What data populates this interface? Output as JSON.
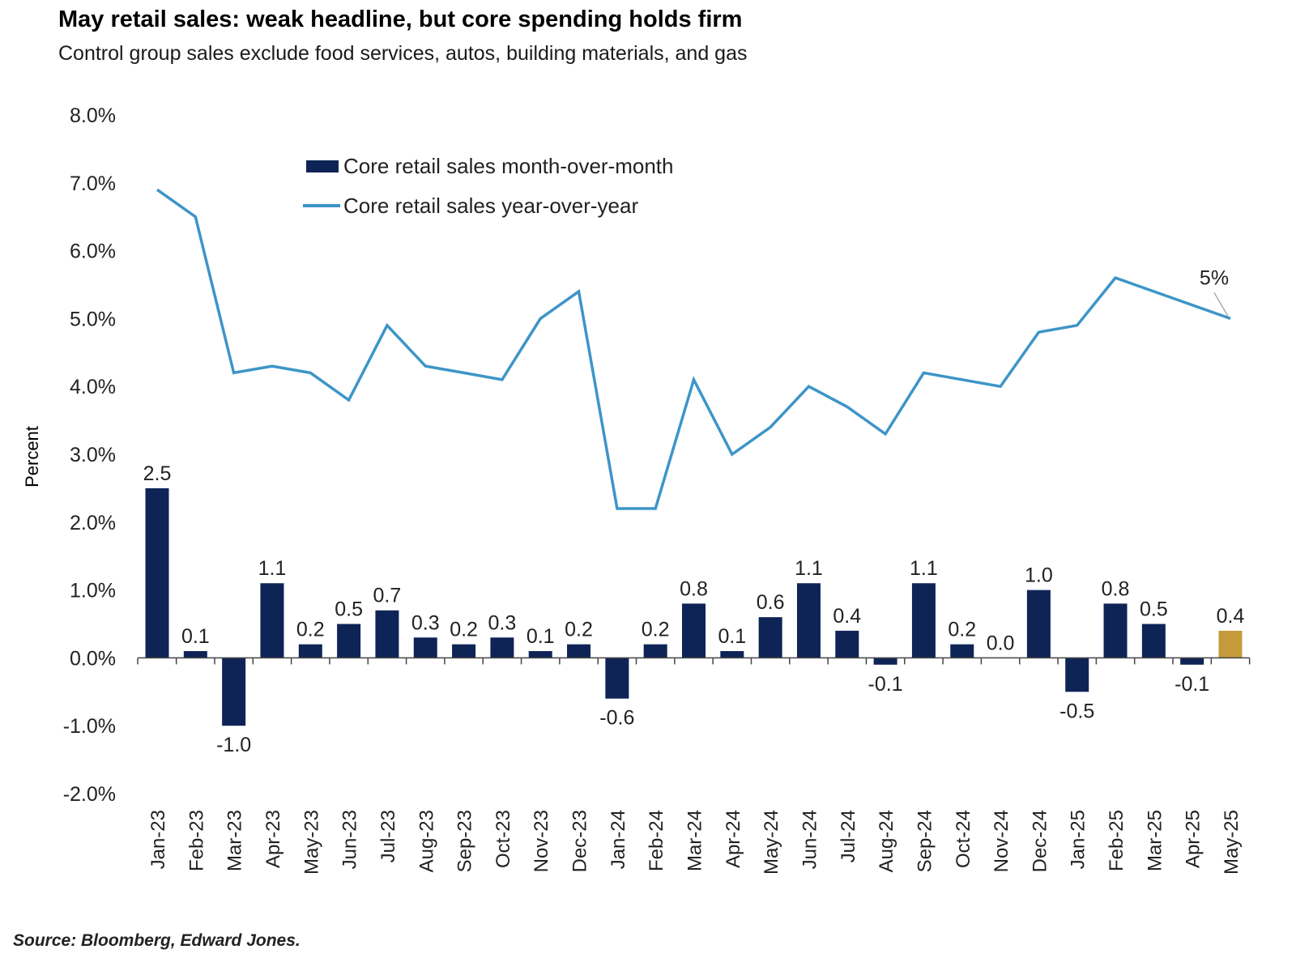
{
  "header": {
    "title": "May retail sales: weak headline, but core spending holds firm",
    "subtitle": "Control group sales exclude food services, autos, building materials, and gas"
  },
  "footer": {
    "source": "Source: Bloomberg, Edward Jones."
  },
  "colors": {
    "bar": "#0f2456",
    "bar_highlight": "#c49a3a",
    "line": "#3d95c8",
    "axis": "#444444"
  },
  "chart_data": {
    "type": "bar",
    "ylabel": "Percent",
    "ylim": [
      -2.0,
      8.0
    ],
    "yticks": [
      "8.0%",
      "7.0%",
      "6.0%",
      "5.0%",
      "4.0%",
      "3.0%",
      "2.0%",
      "1.0%",
      "0.0%",
      "-1.0%",
      "-2.0%"
    ],
    "ytick_values": [
      8,
      7,
      6,
      5,
      4,
      3,
      2,
      1,
      0,
      -1,
      -2
    ],
    "categories": [
      "Jan-23",
      "Feb-23",
      "Mar-23",
      "Apr-23",
      "May-23",
      "Jun-23",
      "Jul-23",
      "Aug-23",
      "Sep-23",
      "Oct-23",
      "Nov-23",
      "Dec-23",
      "Jan-24",
      "Feb-24",
      "Mar-24",
      "Apr-24",
      "May-24",
      "Jun-24",
      "Jul-24",
      "Aug-24",
      "Sep-24",
      "Oct-24",
      "Nov-24",
      "Dec-24",
      "Jan-25",
      "Feb-25",
      "Mar-25",
      "Apr-25",
      "May-25"
    ],
    "legend_position": "top-left",
    "series": [
      {
        "name": "Core retail sales month-over-month",
        "type": "bar",
        "values": [
          2.5,
          0.1,
          -1.0,
          1.1,
          0.2,
          0.5,
          0.7,
          0.3,
          0.2,
          0.3,
          0.1,
          0.2,
          -0.6,
          0.2,
          0.8,
          0.1,
          0.6,
          1.1,
          0.4,
          -0.1,
          1.1,
          0.2,
          0.0,
          1.0,
          -0.5,
          0.8,
          0.5,
          -0.1,
          0.4
        ],
        "labels": [
          "2.5",
          "0.1",
          "-1.0",
          "1.1",
          "0.2",
          "0.5",
          "0.7",
          "0.3",
          "0.2",
          "0.3",
          "0.1",
          "0.2",
          "-0.6",
          "0.2",
          "0.8",
          "0.1",
          "0.6",
          "1.1",
          "0.4",
          "-0.1",
          "1.1",
          "0.2",
          "0.0",
          "1.0",
          "-0.5",
          "0.8",
          "0.5",
          "-0.1",
          "0.4"
        ],
        "highlight_index": 28
      },
      {
        "name": "Core retail sales year-over-year",
        "type": "line",
        "values": [
          6.9,
          6.5,
          4.2,
          4.3,
          4.2,
          3.8,
          4.9,
          4.3,
          4.2,
          4.1,
          5.0,
          5.4,
          2.2,
          2.2,
          4.1,
          3.0,
          3.4,
          4.0,
          3.7,
          3.3,
          4.2,
          4.1,
          4.0,
          4.8,
          4.9,
          5.6,
          5.4,
          5.2,
          5.0
        ]
      }
    ],
    "annotations": [
      {
        "text": "5%",
        "index": 28
      }
    ]
  }
}
